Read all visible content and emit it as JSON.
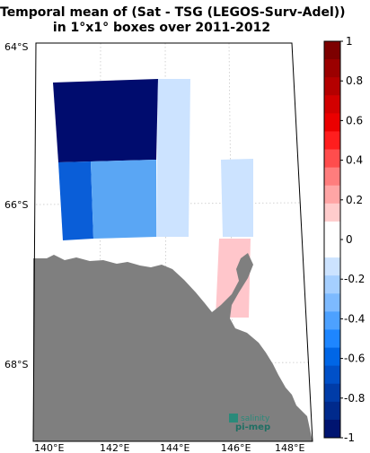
{
  "title_line1": "Temporal mean of (Sat - TSG (LEGOS-Surv-Adel))",
  "title_line2": "in 1°x1° boxes over 2011-2012",
  "lat_labels": [
    "64°S",
    "66°S",
    "68°S"
  ],
  "lon_labels": [
    "140°E",
    "142°E",
    "144°E",
    "146°E",
    "148°E"
  ],
  "colorbar": {
    "ticks": [
      "1",
      "0.8",
      "0.6",
      "0.4",
      "0.2",
      "0",
      "-0.2",
      "-0.4",
      "-0.6",
      "-0.8",
      "-1"
    ],
    "range": [
      -1,
      1
    ],
    "colors_top_to_bottom": [
      "#7d0000",
      "#9b0000",
      "#b40000",
      "#d20000",
      "#eb0000",
      "#ff1e1e",
      "#ff4d4d",
      "#ff7d7d",
      "#ffa5a5",
      "#ffcccc",
      "#ffffff",
      "#ffffff",
      "#cce3ff",
      "#a5cfff",
      "#7dbaff",
      "#4da1ff",
      "#1e86ff",
      "#0066e6",
      "#0050c8",
      "#003ca8",
      "#002a8c",
      "#001470"
    ]
  },
  "boxes": [
    {
      "value": -0.9,
      "color": "#000c6e"
    },
    {
      "value": -0.2,
      "color": "#cce3ff"
    },
    {
      "value": -0.6,
      "color": "#0a5ed8"
    },
    {
      "value": -0.4,
      "color": "#5aa6f4"
    },
    {
      "value": -0.2,
      "color": "#cce3ff"
    },
    {
      "value": 0.2,
      "color": "#ffc6cb"
    }
  ],
  "land_color": "#7f7f7f",
  "logo": {
    "line1": "salinity",
    "line2": "pi-mep"
  }
}
